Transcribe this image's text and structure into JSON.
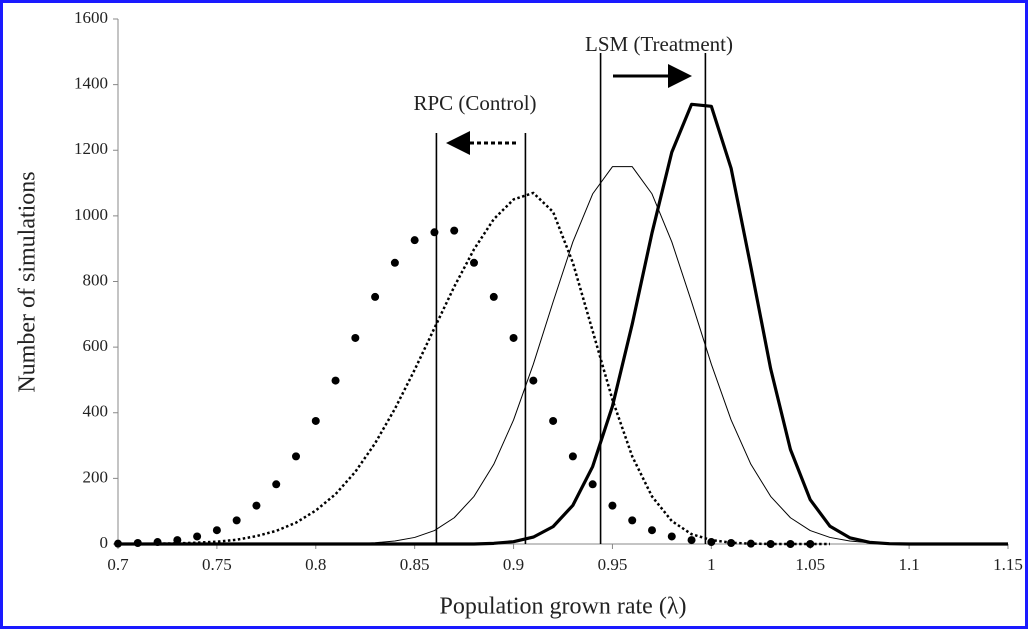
{
  "chart_data": {
    "type": "line",
    "xlabel": "Population grown rate (λ)",
    "ylabel": "Number of simulations",
    "x": [
      0.7,
      0.71,
      0.72,
      0.73,
      0.74,
      0.75,
      0.76,
      0.77,
      0.78,
      0.79,
      0.8,
      0.81,
      0.82,
      0.83,
      0.84,
      0.85,
      0.86,
      0.87,
      0.88,
      0.89,
      0.9,
      0.91,
      0.92,
      0.93,
      0.94,
      0.95,
      0.96,
      0.97,
      0.98,
      0.99,
      1.0,
      1.01,
      1.02,
      1.03,
      1.04,
      1.05,
      1.06,
      1.07,
      1.08,
      1.09,
      1.1,
      1.11,
      1.12,
      1.13,
      1.14,
      1.15
    ],
    "series": [
      {
        "color": "#000000",
        "line_style": "dots",
        "line_width": 4,
        "values": [
          1,
          3,
          6,
          12,
          23,
          42,
          72,
          117,
          182,
          267,
          375,
          498,
          628,
          753,
          857,
          926,
          950,
          955,
          857,
          753,
          628,
          498,
          375,
          267,
          182,
          117,
          72,
          42,
          23,
          12,
          6,
          3,
          1,
          0,
          0,
          0,
          null,
          null,
          null,
          null,
          null,
          null,
          null,
          null,
          null,
          null
        ]
      },
      {
        "color": "#000000",
        "line_style": "dotted",
        "line_width": 2.5,
        "values": [
          0,
          0,
          1,
          2,
          4,
          7,
          13,
          24,
          40,
          65,
          102,
          152,
          220,
          307,
          412,
          531,
          658,
          784,
          898,
          990,
          1050,
          1070,
          1012,
          857,
          649,
          440,
          267,
          145,
          70,
          30,
          12,
          4,
          1,
          0,
          0,
          0,
          0,
          null,
          null,
          null,
          null,
          null,
          null,
          null,
          null,
          null
        ]
      },
      {
        "color": "#000000",
        "line_style": "solid",
        "line_width": 1,
        "values": [
          0,
          0,
          0,
          0,
          0,
          0,
          0,
          0,
          0,
          0,
          0,
          0,
          1,
          4,
          9,
          20,
          41,
          80,
          145,
          243,
          378,
          548,
          738,
          921,
          1067,
          1150,
          1150,
          1067,
          921,
          738,
          548,
          378,
          243,
          145,
          80,
          41,
          20,
          9,
          4,
          1,
          0,
          0,
          0,
          0,
          0,
          0
        ]
      },
      {
        "color": "#000000",
        "line_style": "solid",
        "line_width": 3.2,
        "values": [
          0,
          0,
          0,
          0,
          0,
          0,
          0,
          0,
          0,
          0,
          0,
          0,
          0,
          0,
          0,
          0,
          0,
          0,
          0,
          2,
          7,
          21,
          53,
          118,
          236,
          420,
          670,
          948,
          1194,
          1340,
          1334,
          1145,
          844,
          534,
          288,
          135,
          54,
          19,
          5,
          1,
          0,
          0,
          0,
          0,
          0,
          0
        ]
      }
    ],
    "vlines": [
      0.861,
      0.906,
      0.944,
      0.997
    ],
    "annotations": [
      "RPC (Control)",
      "LSM (Treatment)"
    ],
    "xlim": [
      0.7,
      1.15
    ],
    "xticks": [
      0.7,
      0.75,
      0.8,
      0.85,
      0.9,
      0.95,
      1,
      1.05,
      1.1,
      1.15
    ],
    "ylim": [
      0,
      1600
    ],
    "yticks": [
      0,
      200,
      400,
      600,
      800,
      1000,
      1200,
      1400,
      1600
    ],
    "grid": false
  }
}
